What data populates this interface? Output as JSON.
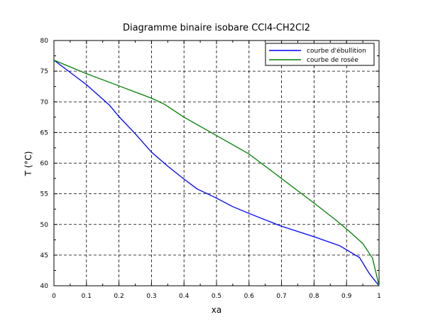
{
  "chart_data": {
    "type": "line",
    "title": "Diagramme binaire isobare CCl4-CH2Cl2",
    "xlabel": "xa",
    "ylabel": "T (°C)",
    "xlim": [
      0,
      1
    ],
    "ylim": [
      40,
      80
    ],
    "xticks": [
      "0",
      "0.1",
      "0.2",
      "0.3",
      "0.4",
      "0.5",
      "0.6",
      "0.7",
      "0.8",
      "0.9",
      "1"
    ],
    "yticks": [
      "40",
      "45",
      "50",
      "55",
      "60",
      "65",
      "70",
      "75",
      "80"
    ],
    "grid": true,
    "legend_position": "top-right",
    "series": [
      {
        "name": "courbe d'ébullition",
        "color": "#0000ff",
        "x": [
          0,
          0.05,
          0.1,
          0.17,
          0.2,
          0.25,
          0.3,
          0.35,
          0.4,
          0.44,
          0.5,
          0.55,
          0.6,
          0.7,
          0.8,
          0.88,
          0.94,
          0.97,
          1
        ],
        "y": [
          76.8,
          74.8,
          72.8,
          69.5,
          67.6,
          64.8,
          61.8,
          59.5,
          57.4,
          55.8,
          54.3,
          52.9,
          51.8,
          49.7,
          48.0,
          46.5,
          44.6,
          42.0,
          40.0
        ]
      },
      {
        "name": "courbe de rosée",
        "color": "#008000",
        "x": [
          0,
          0.1,
          0.2,
          0.3,
          0.34,
          0.4,
          0.5,
          0.6,
          0.7,
          0.8,
          0.87,
          0.91,
          0.95,
          0.98,
          1
        ],
        "y": [
          76.8,
          74.6,
          72.6,
          70.6,
          69.6,
          67.5,
          64.5,
          61.5,
          57.5,
          53.5,
          50.6,
          48.8,
          46.9,
          44.5,
          40.0
        ]
      }
    ]
  }
}
